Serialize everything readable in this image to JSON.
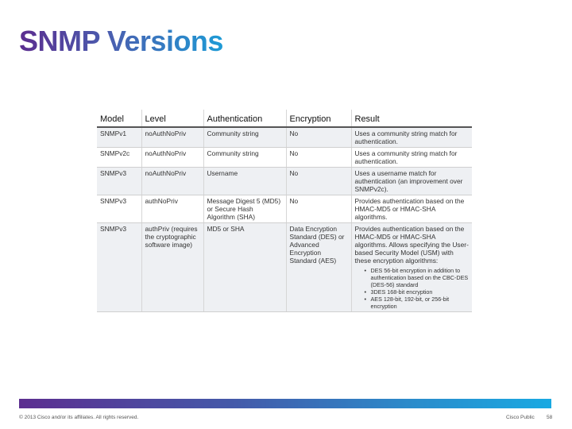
{
  "slide": {
    "title": "SNMP Versions"
  },
  "table": {
    "headers": [
      "Model",
      "Level",
      "Authentication",
      "Encryption",
      "Result"
    ],
    "rows": [
      {
        "model": "SNMPv1",
        "level": "noAuthNoPriv",
        "authentication": "Community string",
        "encryption": "No",
        "result": "Uses a community string match for authentication."
      },
      {
        "model": "SNMPv2c",
        "level": "noAuthNoPriv",
        "authentication": "Community string",
        "encryption": "No",
        "result": "Uses a community string match for authentication."
      },
      {
        "model": "SNMPv3",
        "level": "noAuthNoPriv",
        "authentication": "Username",
        "encryption": "No",
        "result": "Uses a username match for authentication (an improvement over SNMPv2c)."
      },
      {
        "model": "SNMPv3",
        "level": "authNoPriv",
        "authentication": "Message Digest 5 (MD5) or Secure Hash Algorithm (SHA)",
        "encryption": "No",
        "result": "Provides authentication based on the HMAC-MD5 or HMAC-SHA algorithms."
      },
      {
        "model": "SNMPv3",
        "level": "authPriv (requires the cryptographic software image)",
        "authentication": "MD5 or SHA",
        "encryption": "Data Encryption Standard (DES) or Advanced Encryption Standard (AES)",
        "result": "Provides authentication based on the HMAC-MD5 or HMAC-SHA algorithms. Allows specifying the User-based Security Model (USM) with these encryption algorithms:",
        "bullets": [
          "DES 56-bit encryption in addition to authentication based on the CBC-DES (DES-56) standard",
          "3DES 168-bit encryption",
          "AES 128-bit, 192-bit, or 256-bit encryption"
        ]
      }
    ]
  },
  "footer": {
    "copyright": "© 2013 Cisco and/or its affiliates. All rights reserved.",
    "classification": "Cisco Public",
    "page_number": "58"
  },
  "colors": {
    "title_gradient_start": "#5b2d8f",
    "title_gradient_end": "#1d9bd6",
    "footer_bar_start": "#5c2e90",
    "footer_bar_end": "#19a9e2",
    "row_shade": "#eef0f3"
  }
}
